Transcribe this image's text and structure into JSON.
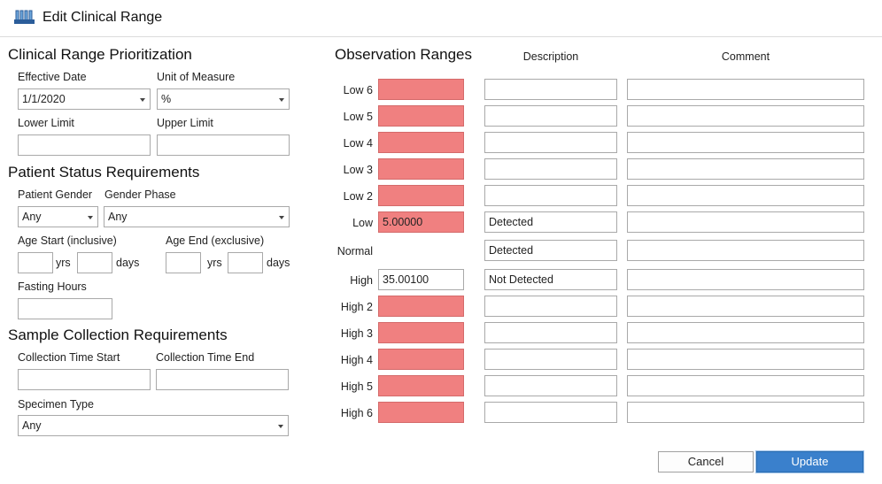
{
  "window": {
    "title": "Edit Clinical Range",
    "icon": "test-tubes-rack-icon"
  },
  "prioritization": {
    "heading": "Clinical Range Prioritization",
    "effective_date_label": "Effective Date",
    "effective_date_value": "1/1/2020",
    "unit_label": "Unit of Measure",
    "unit_value": "%",
    "lower_limit_label": "Lower Limit",
    "lower_limit_value": "",
    "upper_limit_label": "Upper Limit",
    "upper_limit_value": ""
  },
  "patient_status": {
    "heading": "Patient Status Requirements",
    "gender_label": "Patient Gender",
    "gender_value": "Any",
    "gender_phase_label": "Gender Phase",
    "gender_phase_value": "Any",
    "age_start_label": "Age Start (inclusive)",
    "age_end_label": "Age End (exclusive)",
    "yrs_unit": "yrs",
    "days_unit": "days",
    "fasting_label": "Fasting Hours"
  },
  "sample": {
    "heading": "Sample Collection Requirements",
    "time_start_label": "Collection Time Start",
    "time_end_label": "Collection Time End",
    "specimen_label": "Specimen Type",
    "specimen_value": "Any"
  },
  "observation": {
    "heading": "Observation Ranges",
    "description_header": "Description",
    "comment_header": "Comment",
    "rows": [
      {
        "label": "Low 6",
        "value": "",
        "description": "",
        "comment": ""
      },
      {
        "label": "Low 5",
        "value": "",
        "description": "",
        "comment": ""
      },
      {
        "label": "Low 4",
        "value": "",
        "description": "",
        "comment": ""
      },
      {
        "label": "Low 3",
        "value": "",
        "description": "",
        "comment": ""
      },
      {
        "label": "Low 2",
        "value": "",
        "description": "",
        "comment": ""
      },
      {
        "label": "Low",
        "value": "5.00000",
        "description": "Detected",
        "comment": ""
      },
      {
        "label": "Normal",
        "value": "",
        "description": "Detected",
        "comment": ""
      },
      {
        "label": "High",
        "value": "35.00100",
        "description": "Not Detected",
        "comment": ""
      },
      {
        "label": "High 2",
        "value": "",
        "description": "",
        "comment": ""
      },
      {
        "label": "High 3",
        "value": "",
        "description": "",
        "comment": ""
      },
      {
        "label": "High 4",
        "value": "",
        "description": "",
        "comment": ""
      },
      {
        "label": "High 5",
        "value": "",
        "description": "",
        "comment": ""
      },
      {
        "label": "High 6",
        "value": "",
        "description": "",
        "comment": ""
      }
    ]
  },
  "buttons": {
    "cancel": "Cancel",
    "update": "Update"
  },
  "colors": {
    "invalid_fill": "#f08080",
    "primary": "#3a80cc"
  }
}
